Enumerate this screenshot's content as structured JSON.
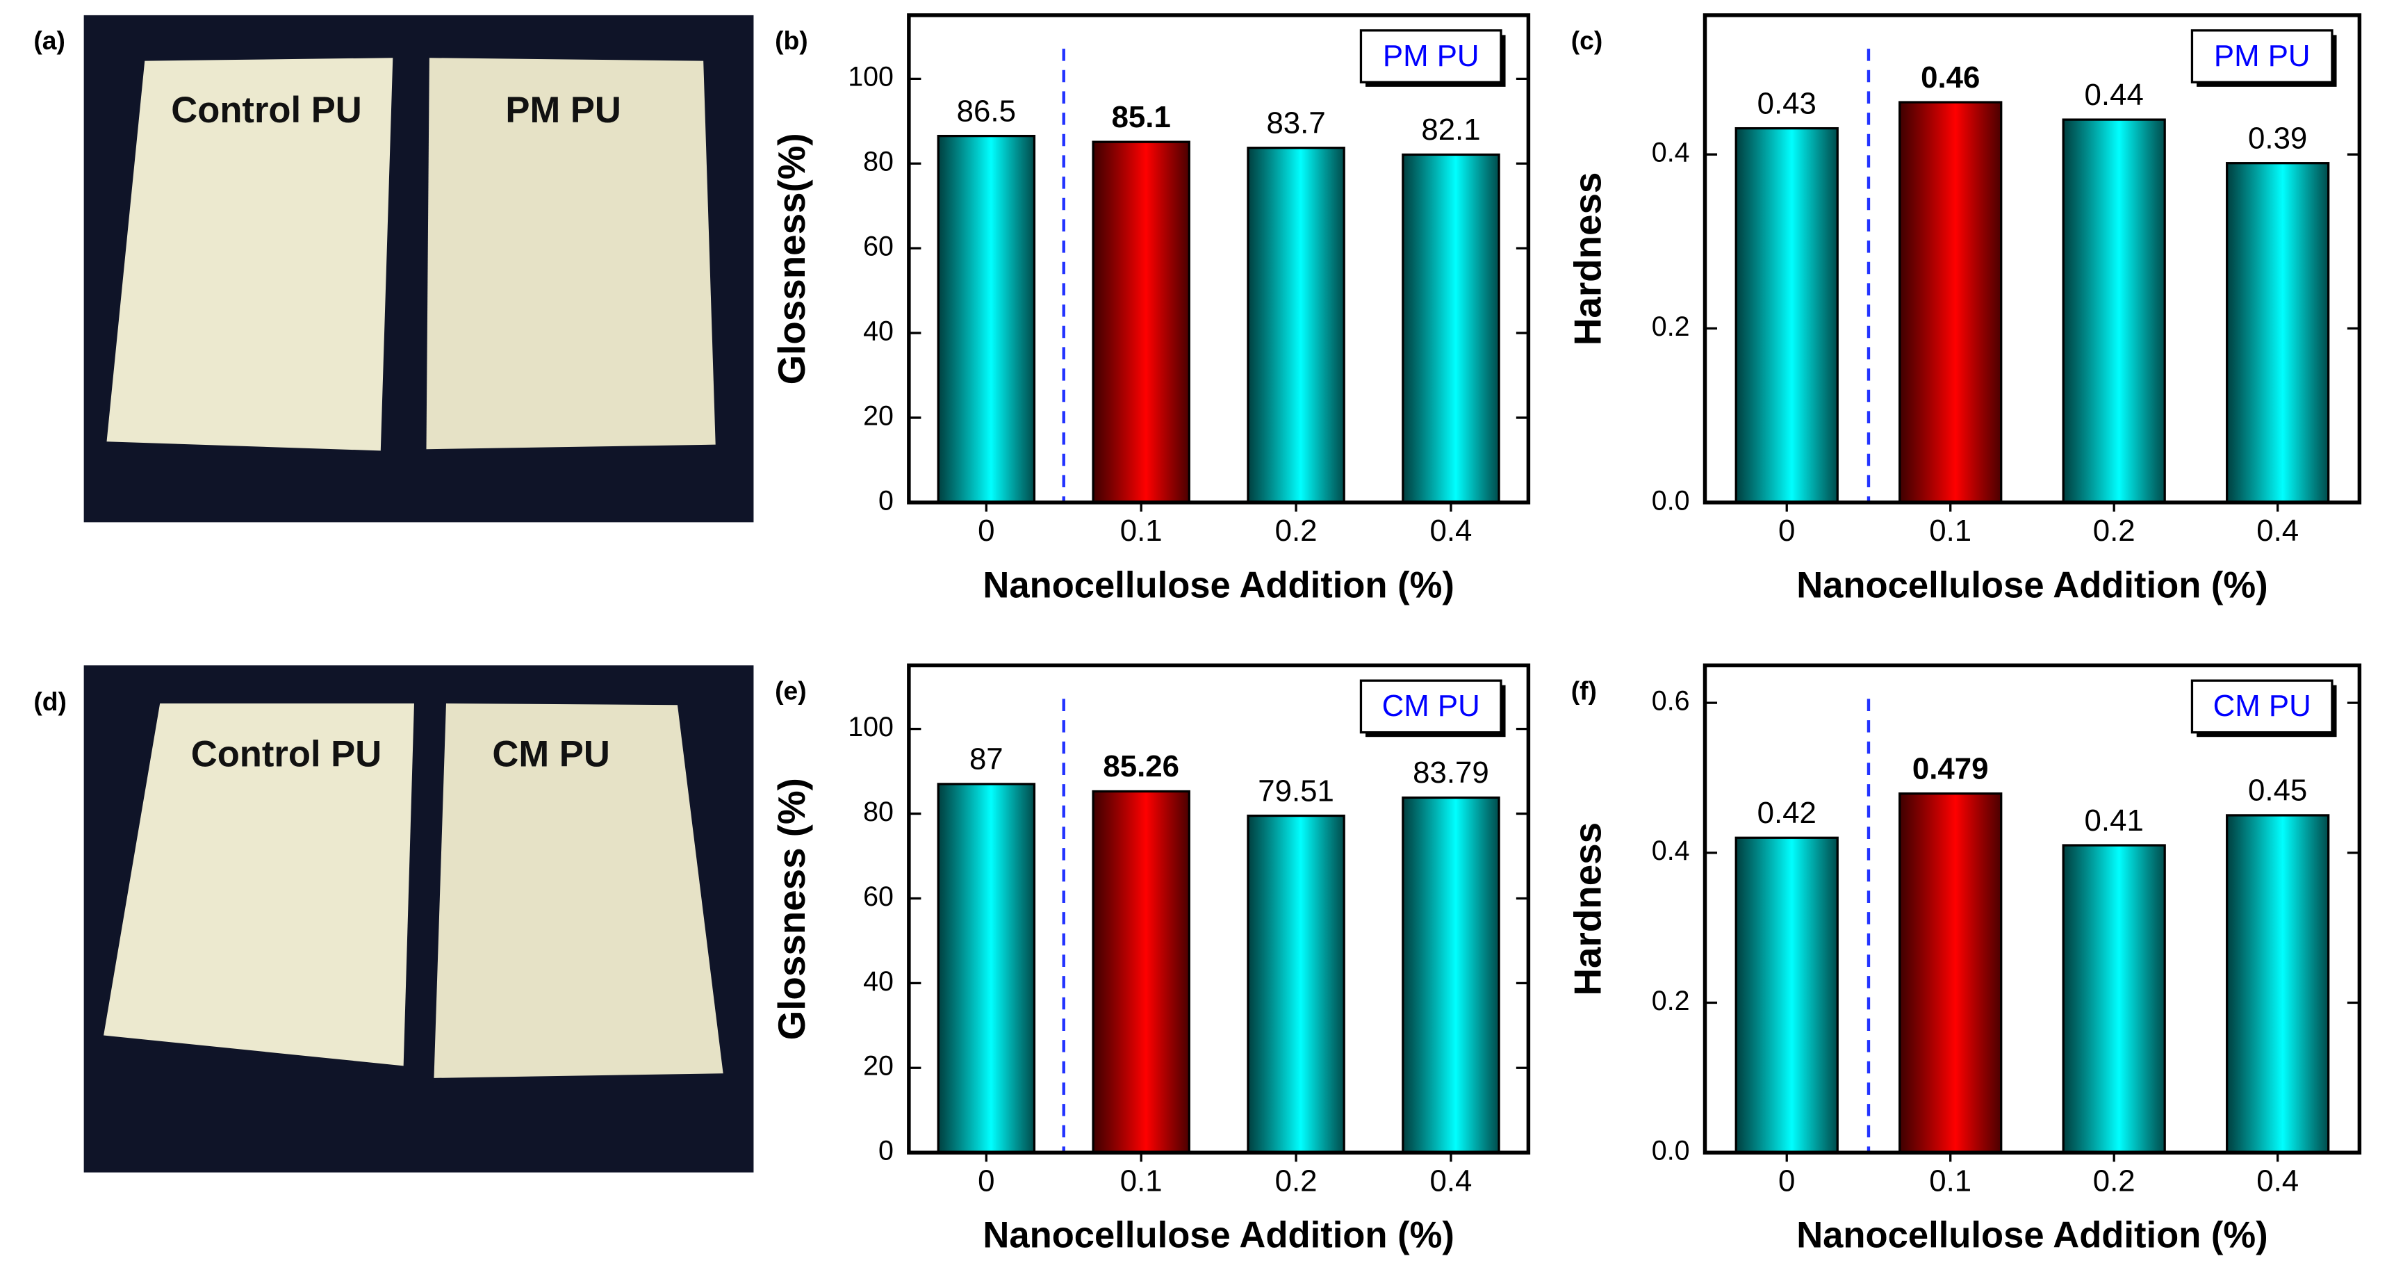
{
  "photos": [
    {
      "panel": "(a)",
      "labels": [
        "Control PU",
        "PM PU"
      ]
    },
    {
      "panel": "(d)",
      "labels": [
        "Control PU",
        "CM PU"
      ]
    }
  ],
  "chart_data": [
    {
      "type": "bar",
      "panel": "(b)",
      "annotation": "PM PU",
      "xlabel": "Nanocellulose Addition (%)",
      "ylabel": "Glossness(%)",
      "categories": [
        "0",
        "0.1",
        "0.2",
        "0.4"
      ],
      "values": [
        86.5,
        85.1,
        83.7,
        82.1
      ],
      "colors": [
        "#00ffff",
        "#ff0000",
        "#00ffff",
        "#00ffff"
      ],
      "ylim": [
        0,
        115
      ],
      "yticks": [
        0,
        20,
        40,
        60,
        80,
        100
      ]
    },
    {
      "type": "bar",
      "panel": "(c)",
      "annotation": "PM PU",
      "xlabel": "Nanocellulose Addition (%)",
      "ylabel": "Hardness",
      "categories": [
        "0",
        "0.1",
        "0.2",
        "0.4"
      ],
      "values": [
        0.43,
        0.46,
        0.44,
        0.39
      ],
      "colors": [
        "#00ffff",
        "#ff0000",
        "#00ffff",
        "#00ffff"
      ],
      "ylim": [
        0,
        0.56
      ],
      "yticks": [
        {
          "value": 0,
          "label": "0.0"
        },
        0.2,
        0.4
      ]
    },
    {
      "type": "bar",
      "panel": "(e)",
      "annotation": "CM PU",
      "xlabel": "Nanocellulose Addition (%)",
      "ylabel": "Glossness (%)",
      "categories": [
        "0",
        "0.1",
        "0.2",
        "0.4"
      ],
      "values": [
        87,
        85.26,
        79.51,
        83.79
      ],
      "colors": [
        "#00ffff",
        "#ff0000",
        "#00ffff",
        "#00ffff"
      ],
      "ylim": [
        0,
        115
      ],
      "yticks": [
        0,
        20,
        40,
        60,
        80,
        100
      ]
    },
    {
      "type": "bar",
      "panel": "(f)",
      "annotation": "CM PU",
      "xlabel": "Nanocellulose Addition (%)",
      "ylabel": "Hardness",
      "categories": [
        "0",
        "0.1",
        "0.2",
        "0.4"
      ],
      "values": [
        0.42,
        0.479,
        0.41,
        0.45
      ],
      "colors": [
        "#00ffff",
        "#ff0000",
        "#00ffff",
        "#00ffff"
      ],
      "ylim": [
        0,
        0.65
      ],
      "yticks": [
        {
          "value": 0,
          "label": "0.0"
        },
        0.2,
        0.4,
        0.6
      ]
    }
  ]
}
